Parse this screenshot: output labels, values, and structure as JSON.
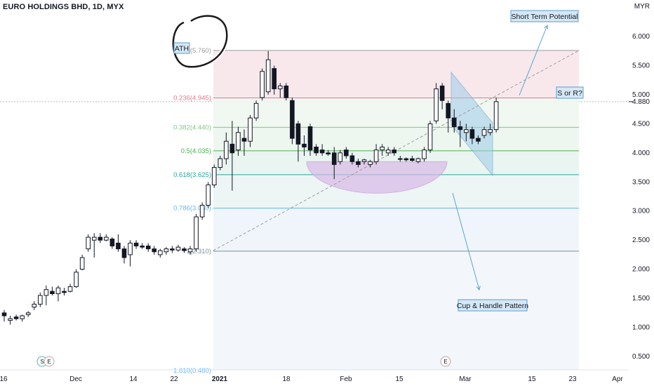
{
  "header": {
    "title": "EURO HOLDINGS BHD, 1D, MYX"
  },
  "axis": {
    "currency": "MYR",
    "y_ticks": [
      "6.000",
      "5.500",
      "5.000",
      "4.500",
      "4.000",
      "3.500",
      "3.000",
      "2.500",
      "2.000",
      "1.500",
      "1.000",
      "0.500"
    ],
    "x_ticks": [
      "16",
      "Dec",
      "14",
      "22",
      "2021",
      "18",
      "Feb",
      "15",
      "Mar",
      "15",
      "23",
      "Apr"
    ],
    "current_price": "4.880"
  },
  "fib_levels": [
    {
      "label": "0(5.760)",
      "value": 5.76,
      "color": "#9e9e9e"
    },
    {
      "label": "0.236(4.945)",
      "value": 4.945,
      "color": "#e07a8a"
    },
    {
      "label": "0.382(4.440)",
      "value": 4.44,
      "color": "#81c784"
    },
    {
      "label": "0.5(4.035)",
      "value": 4.035,
      "color": "#4caf50"
    },
    {
      "label": "0.618(3.625)",
      "value": 3.625,
      "color": "#26a69a"
    },
    {
      "label": "0.786(3.050)",
      "value": 3.05,
      "color": "#64b5f6"
    },
    {
      "label": "1(2.310)",
      "value": 2.31,
      "color": "#78909c"
    }
  ],
  "fib_bottom_label": "1.618(0.480)",
  "annotations": {
    "ath": "ATH",
    "short_term": "Short Term Potential",
    "s_or_r": "S or R?",
    "cup_handle": "Cup & Handle Pattern"
  },
  "event_markers": [
    "S",
    "E",
    "E"
  ],
  "colors": {
    "up": "#ffffff",
    "down": "#131722",
    "wick": "#131722",
    "fib_zone_top": "#f6e5ea",
    "fib_zone_low": "#eef4fb",
    "cup": "#d9b8e6",
    "channel": "#9ecbe8"
  },
  "chart_data": {
    "type": "candlestick",
    "title": "EURO HOLDINGS BHD, 1D, MYX",
    "ylabel": "MYR",
    "ylim": [
      0.4,
      6.3
    ],
    "candles": [
      {
        "o": 1.25,
        "h": 1.3,
        "l": 1.1,
        "c": 1.2
      },
      {
        "o": 1.12,
        "h": 1.2,
        "l": 1.05,
        "c": 1.15
      },
      {
        "o": 1.18,
        "h": 1.22,
        "l": 1.12,
        "c": 1.15
      },
      {
        "o": 1.15,
        "h": 1.22,
        "l": 1.1,
        "c": 1.2
      },
      {
        "o": 1.22,
        "h": 1.28,
        "l": 1.18,
        "c": 1.25
      },
      {
        "o": 1.35,
        "h": 1.45,
        "l": 1.3,
        "c": 1.4
      },
      {
        "o": 1.4,
        "h": 1.6,
        "l": 1.35,
        "c": 1.55
      },
      {
        "o": 1.55,
        "h": 1.72,
        "l": 1.38,
        "c": 1.65
      },
      {
        "o": 1.62,
        "h": 1.7,
        "l": 1.55,
        "c": 1.58
      },
      {
        "o": 1.58,
        "h": 1.72,
        "l": 1.45,
        "c": 1.68
      },
      {
        "o": 1.62,
        "h": 1.68,
        "l": 1.55,
        "c": 1.6
      },
      {
        "o": 1.62,
        "h": 1.75,
        "l": 1.6,
        "c": 1.7
      },
      {
        "o": 1.7,
        "h": 2.0,
        "l": 1.68,
        "c": 1.95
      },
      {
        "o": 2.0,
        "h": 2.25,
        "l": 1.98,
        "c": 2.2
      },
      {
        "o": 2.35,
        "h": 2.6,
        "l": 2.3,
        "c": 2.55
      },
      {
        "o": 2.5,
        "h": 2.62,
        "l": 2.2,
        "c": 2.55
      },
      {
        "o": 2.55,
        "h": 2.62,
        "l": 2.45,
        "c": 2.5
      },
      {
        "o": 2.5,
        "h": 2.6,
        "l": 2.48,
        "c": 2.55
      },
      {
        "o": 2.52,
        "h": 2.55,
        "l": 2.35,
        "c": 2.4
      },
      {
        "o": 2.45,
        "h": 2.6,
        "l": 2.3,
        "c": 2.35
      },
      {
        "o": 2.35,
        "h": 2.4,
        "l": 2.1,
        "c": 2.2
      },
      {
        "o": 2.25,
        "h": 2.5,
        "l": 2.05,
        "c": 2.45
      },
      {
        "o": 2.45,
        "h": 2.5,
        "l": 2.35,
        "c": 2.4
      },
      {
        "o": 2.4,
        "h": 2.45,
        "l": 2.35,
        "c": 2.38
      },
      {
        "o": 2.4,
        "h": 2.45,
        "l": 2.3,
        "c": 2.35
      },
      {
        "o": 2.35,
        "h": 2.4,
        "l": 2.25,
        "c": 2.3
      },
      {
        "o": 2.25,
        "h": 2.35,
        "l": 2.2,
        "c": 2.32
      },
      {
        "o": 2.3,
        "h": 2.38,
        "l": 2.25,
        "c": 2.35
      },
      {
        "o": 2.35,
        "h": 2.4,
        "l": 2.28,
        "c": 2.33
      },
      {
        "o": 2.33,
        "h": 2.42,
        "l": 2.3,
        "c": 2.38
      },
      {
        "o": 2.35,
        "h": 2.38,
        "l": 2.28,
        "c": 2.32
      },
      {
        "o": 2.3,
        "h": 2.4,
        "l": 2.25,
        "c": 2.35
      },
      {
        "o": 2.35,
        "h": 2.95,
        "l": 2.3,
        "c": 2.9
      },
      {
        "o": 2.9,
        "h": 3.15,
        "l": 2.85,
        "c": 3.1
      },
      {
        "o": 3.1,
        "h": 3.5,
        "l": 3.05,
        "c": 3.45
      },
      {
        "o": 3.45,
        "h": 3.8,
        "l": 3.4,
        "c": 3.75
      },
      {
        "o": 3.75,
        "h": 3.95,
        "l": 3.7,
        "c": 3.9
      },
      {
        "o": 3.9,
        "h": 4.35,
        "l": 3.8,
        "c": 4.2
      },
      {
        "o": 4.15,
        "h": 4.55,
        "l": 3.35,
        "c": 4.0
      },
      {
        "o": 4.05,
        "h": 4.45,
        "l": 3.95,
        "c": 4.35
      },
      {
        "o": 4.25,
        "h": 4.4,
        "l": 3.95,
        "c": 4.2
      },
      {
        "o": 4.2,
        "h": 4.65,
        "l": 4.1,
        "c": 4.6
      },
      {
        "o": 4.6,
        "h": 4.9,
        "l": 4.55,
        "c": 4.85
      },
      {
        "o": 4.95,
        "h": 5.45,
        "l": 4.9,
        "c": 5.4
      },
      {
        "o": 5.05,
        "h": 5.75,
        "l": 5.0,
        "c": 5.6
      },
      {
        "o": 5.45,
        "h": 5.5,
        "l": 5.0,
        "c": 5.1
      },
      {
        "o": 5.1,
        "h": 5.2,
        "l": 4.95,
        "c": 5.15
      },
      {
        "o": 5.15,
        "h": 5.2,
        "l": 4.9,
        "c": 4.95
      },
      {
        "o": 4.9,
        "h": 4.95,
        "l": 4.15,
        "c": 4.25
      },
      {
        "o": 4.5,
        "h": 4.55,
        "l": 3.85,
        "c": 4.15
      },
      {
        "o": 4.15,
        "h": 4.3,
        "l": 3.95,
        "c": 4.1
      },
      {
        "o": 4.45,
        "h": 4.5,
        "l": 3.95,
        "c": 4.05
      },
      {
        "o": 4.1,
        "h": 4.15,
        "l": 3.95,
        "c": 4.0
      },
      {
        "o": 4.05,
        "h": 4.15,
        "l": 3.95,
        "c": 4.0
      },
      {
        "o": 4.0,
        "h": 4.05,
        "l": 3.95,
        "c": 3.98
      },
      {
        "o": 4.0,
        "h": 4.1,
        "l": 3.55,
        "c": 3.8
      },
      {
        "o": 3.85,
        "h": 4.05,
        "l": 3.8,
        "c": 4.0
      },
      {
        "o": 4.05,
        "h": 4.1,
        "l": 3.9,
        "c": 3.95
      },
      {
        "o": 3.95,
        "h": 4.0,
        "l": 3.8,
        "c": 3.85
      },
      {
        "o": 3.85,
        "h": 3.9,
        "l": 3.75,
        "c": 3.8
      },
      {
        "o": 3.85,
        "h": 3.9,
        "l": 3.8,
        "c": 3.88
      },
      {
        "o": 3.8,
        "h": 3.88,
        "l": 3.75,
        "c": 3.85
      },
      {
        "o": 3.85,
        "h": 4.15,
        "l": 3.8,
        "c": 4.05
      },
      {
        "o": 4.05,
        "h": 4.15,
        "l": 3.95,
        "c": 4.1
      },
      {
        "o": 4.0,
        "h": 4.1,
        "l": 3.95,
        "c": 4.05
      },
      {
        "o": 4.05,
        "h": 4.1,
        "l": 3.95,
        "c": 4.0
      },
      {
        "o": 3.9,
        "h": 3.95,
        "l": 3.85,
        "c": 3.9
      },
      {
        "o": 3.9,
        "h": 3.92,
        "l": 3.85,
        "c": 3.88
      },
      {
        "o": 3.9,
        "h": 3.95,
        "l": 3.85,
        "c": 3.87
      },
      {
        "o": 3.85,
        "h": 3.92,
        "l": 3.82,
        "c": 3.9
      },
      {
        "o": 3.9,
        "h": 4.1,
        "l": 3.85,
        "c": 4.05
      },
      {
        "o": 4.05,
        "h": 4.55,
        "l": 4.0,
        "c": 4.5
      },
      {
        "o": 4.55,
        "h": 5.2,
        "l": 4.5,
        "c": 5.1
      },
      {
        "o": 5.15,
        "h": 5.2,
        "l": 4.75,
        "c": 4.9
      },
      {
        "o": 4.85,
        "h": 4.9,
        "l": 4.35,
        "c": 4.6
      },
      {
        "o": 4.6,
        "h": 4.75,
        "l": 4.35,
        "c": 4.45
      },
      {
        "o": 4.45,
        "h": 4.55,
        "l": 4.1,
        "c": 4.4
      },
      {
        "o": 4.35,
        "h": 4.5,
        "l": 4.2,
        "c": 4.4
      },
      {
        "o": 4.4,
        "h": 4.45,
        "l": 4.15,
        "c": 4.25
      },
      {
        "o": 4.25,
        "h": 4.3,
        "l": 4.15,
        "c": 4.2
      },
      {
        "o": 4.3,
        "h": 4.45,
        "l": 4.25,
        "c": 4.4
      },
      {
        "o": 4.35,
        "h": 4.5,
        "l": 4.3,
        "c": 4.4
      },
      {
        "o": 4.4,
        "h": 4.95,
        "l": 4.35,
        "c": 4.88
      }
    ]
  }
}
